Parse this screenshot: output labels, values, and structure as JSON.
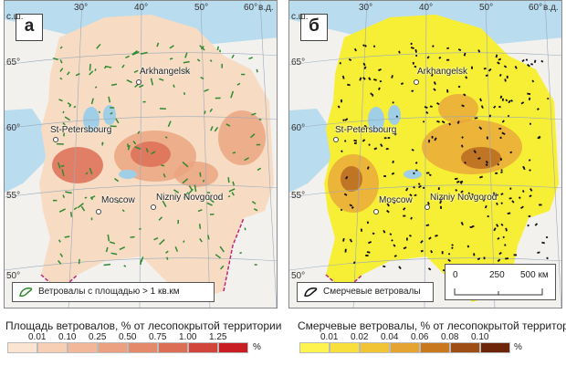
{
  "panels": [
    {
      "letter": "а",
      "legend_label": "Ветровалы с площадью > 1 кв.км",
      "colors": {
        "base": "#f7dcc3",
        "mid": "#eaa27e",
        "high": "#dc6e55",
        "symbol": "#2f8a2f"
      },
      "icon": "polygon-outline-icon"
    },
    {
      "letter": "б",
      "legend_label": "Смерчевые ветровалы",
      "colors": {
        "base": "#f7ef35",
        "mid": "#e8a53a",
        "high": "#b86a22",
        "symbol": "#111111"
      },
      "icon": "polygon-outline-icon"
    }
  ],
  "axes": {
    "lon_ticks": [
      "30°",
      "40°",
      "50°",
      "60°",
      "в.д."
    ],
    "lat_ticks": [
      "с.ш.",
      "65°",
      "60°",
      "55°",
      "50°"
    ]
  },
  "cities": [
    "Arkhangelsk",
    "St-Petersbourg",
    "Moscow",
    "Nizniy Novgorod"
  ],
  "scale_bar": {
    "labels": [
      "0",
      "250",
      "500 км"
    ]
  },
  "ramps": [
    {
      "title": "Площадь ветровалов, % от лесопокрытой территории",
      "labels": [
        "0.01",
        "0.10",
        "0.25",
        "0.50",
        "0.75",
        "1.00",
        "1.25"
      ],
      "unit": "%",
      "colors": [
        "#fbe5d2",
        "#f6cfb5",
        "#f1b798",
        "#eba07f",
        "#e48a6a",
        "#dc6e55",
        "#d2453a",
        "#c81d22"
      ]
    },
    {
      "title": "Смерчевые ветровалы, % от лесопокрытой территории",
      "labels": [
        "0.01",
        "0.02",
        "0.04",
        "0.06",
        "0.08",
        "0.10"
      ],
      "unit": "%",
      "colors": [
        "#fff44f",
        "#f8df3b",
        "#f1c436",
        "#e5a331",
        "#c8781f",
        "#9e4e15",
        "#6d2509"
      ]
    }
  ]
}
